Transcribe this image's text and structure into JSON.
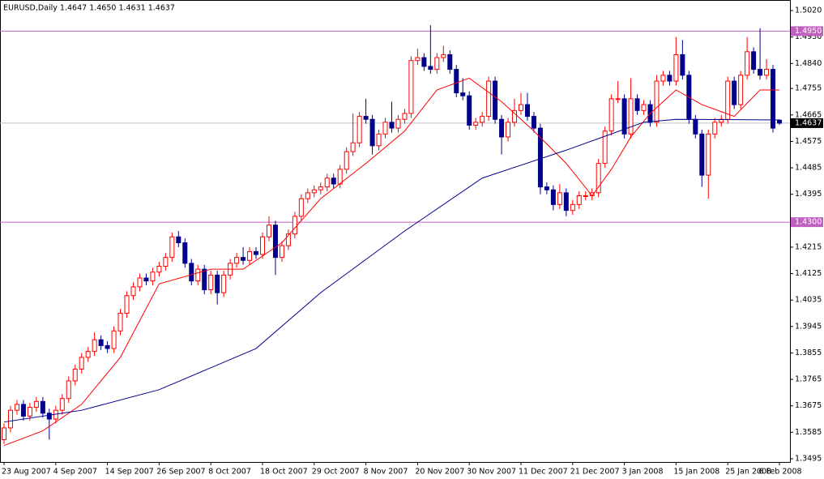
{
  "chart_data": {
    "type": "candlestick",
    "title": "EURUSD,Daily  1.4647 1.4650 1.4631 1.4637",
    "categories": [
      "23 Aug 2007",
      null,
      null,
      null,
      null,
      null,
      null,
      null,
      "4 Sep 2007",
      null,
      null,
      null,
      null,
      null,
      null,
      null,
      "14 Sep 2007",
      null,
      null,
      null,
      null,
      null,
      null,
      null,
      "26 Sep 2007",
      null,
      null,
      null,
      null,
      null,
      null,
      null,
      "8 Oct 2007",
      null,
      null,
      null,
      null,
      null,
      null,
      null,
      "18 Oct 2007",
      null,
      null,
      null,
      null,
      null,
      null,
      null,
      "29 Oct 2007",
      null,
      null,
      null,
      null,
      null,
      null,
      null,
      "8 Nov 2007",
      null,
      null,
      null,
      null,
      null,
      null,
      null,
      "20 Nov 2007",
      null,
      null,
      null,
      null,
      null,
      null,
      null,
      "30 Nov 2007",
      null,
      null,
      null,
      null,
      null,
      null,
      null,
      "11 Dec 2007",
      null,
      null,
      null,
      null,
      null,
      null,
      null,
      "21 Dec 2007",
      null,
      null,
      null,
      null,
      null,
      null,
      null,
      "3 Jan 2008",
      null,
      null,
      null,
      null,
      null,
      null,
      null,
      "15 Jan 2008",
      null,
      null,
      null,
      null,
      null,
      null,
      null,
      "25 Jan 2008",
      null,
      null,
      null,
      null,
      null,
      null,
      null,
      "6 Feb 2008"
    ],
    "candles": [
      [
        1.356,
        1.3615,
        1.3545,
        1.36
      ],
      [
        1.36,
        1.3675,
        1.3585,
        1.366
      ],
      [
        1.366,
        1.3695,
        1.3645,
        1.368
      ],
      [
        1.368,
        1.3695,
        1.3625,
        1.364
      ],
      [
        1.364,
        1.3685,
        1.3625,
        1.367
      ],
      [
        1.367,
        1.3705,
        1.3655,
        1.369
      ],
      [
        1.369,
        1.3705,
        1.3635,
        1.365
      ],
      [
        1.365,
        1.3665,
        1.356,
        1.363
      ],
      [
        1.363,
        1.3675,
        1.3615,
        1.366
      ],
      [
        1.366,
        1.3715,
        1.3645,
        1.37
      ],
      [
        1.37,
        1.3775,
        1.3685,
        1.376
      ],
      [
        1.376,
        1.3815,
        1.3745,
        1.38
      ],
      [
        1.38,
        1.3855,
        1.3785,
        1.384
      ],
      [
        1.384,
        1.3875,
        1.3825,
        1.386
      ],
      [
        1.386,
        1.3925,
        1.3845,
        1.39
      ],
      [
        1.39,
        1.3915,
        1.3865,
        1.388
      ],
      [
        1.388,
        1.3895,
        1.3855,
        1.387
      ],
      [
        1.387,
        1.3945,
        1.3855,
        1.393
      ],
      [
        1.393,
        1.4005,
        1.3915,
        1.399
      ],
      [
        1.399,
        1.4065,
        1.3975,
        1.405
      ],
      [
        1.405,
        1.4095,
        1.4035,
        1.408
      ],
      [
        1.408,
        1.4125,
        1.4065,
        1.411
      ],
      [
        1.411,
        1.4125,
        1.4085,
        1.41
      ],
      [
        1.41,
        1.4145,
        1.4085,
        1.413
      ],
      [
        1.413,
        1.4165,
        1.4115,
        1.415
      ],
      [
        1.415,
        1.4195,
        1.4135,
        1.418
      ],
      [
        1.418,
        1.4265,
        1.4165,
        1.425
      ],
      [
        1.425,
        1.427,
        1.4215,
        1.423
      ],
      [
        1.423,
        1.4245,
        1.4145,
        1.416
      ],
      [
        1.416,
        1.4175,
        1.4085,
        1.41
      ],
      [
        1.41,
        1.4155,
        1.4085,
        1.414
      ],
      [
        1.414,
        1.4155,
        1.4055,
        1.407
      ],
      [
        1.407,
        1.4135,
        1.4055,
        1.412
      ],
      [
        1.412,
        1.4135,
        1.402,
        1.406
      ],
      [
        1.406,
        1.4135,
        1.4045,
        1.412
      ],
      [
        1.412,
        1.4175,
        1.4105,
        1.416
      ],
      [
        1.416,
        1.4195,
        1.4145,
        1.418
      ],
      [
        1.418,
        1.4215,
        1.4155,
        1.417
      ],
      [
        1.417,
        1.4215,
        1.4155,
        1.42
      ],
      [
        1.42,
        1.4215,
        1.4175,
        1.419
      ],
      [
        1.419,
        1.4265,
        1.4175,
        1.425
      ],
      [
        1.425,
        1.432,
        1.4235,
        1.429
      ],
      [
        1.429,
        1.4305,
        1.412,
        1.418
      ],
      [
        1.418,
        1.4235,
        1.4165,
        1.422
      ],
      [
        1.422,
        1.4275,
        1.4205,
        1.426
      ],
      [
        1.426,
        1.4335,
        1.4245,
        1.432
      ],
      [
        1.432,
        1.4395,
        1.4305,
        1.438
      ],
      [
        1.438,
        1.4415,
        1.4365,
        1.44
      ],
      [
        1.44,
        1.4425,
        1.4385,
        1.441
      ],
      [
        1.441,
        1.4435,
        1.4395,
        1.442
      ],
      [
        1.442,
        1.4465,
        1.4405,
        1.445
      ],
      [
        1.445,
        1.4465,
        1.4415,
        1.443
      ],
      [
        1.443,
        1.4495,
        1.4415,
        1.448
      ],
      [
        1.448,
        1.4555,
        1.4465,
        1.454
      ],
      [
        1.454,
        1.467,
        1.4525,
        1.457
      ],
      [
        1.457,
        1.4675,
        1.4555,
        1.466
      ],
      [
        1.466,
        1.472,
        1.4635,
        1.465
      ],
      [
        1.465,
        1.4665,
        1.453,
        1.456
      ],
      [
        1.456,
        1.4615,
        1.4545,
        1.46
      ],
      [
        1.46,
        1.4655,
        1.4585,
        1.464
      ],
      [
        1.464,
        1.471,
        1.4605,
        1.462
      ],
      [
        1.462,
        1.4665,
        1.4605,
        1.465
      ],
      [
        1.465,
        1.4685,
        1.4635,
        1.467
      ],
      [
        1.467,
        1.4865,
        1.4655,
        1.485
      ],
      [
        1.485,
        1.489,
        1.4835,
        1.486
      ],
      [
        1.486,
        1.4875,
        1.4815,
        1.483
      ],
      [
        1.483,
        1.497,
        1.4805,
        1.482
      ],
      [
        1.482,
        1.4875,
        1.4805,
        1.486
      ],
      [
        1.486,
        1.49,
        1.4845,
        1.487
      ],
      [
        1.487,
        1.4885,
        1.4805,
        1.482
      ],
      [
        1.482,
        1.4835,
        1.4725,
        1.474
      ],
      [
        1.474,
        1.479,
        1.4715,
        1.473
      ],
      [
        1.473,
        1.4745,
        1.4615,
        1.463
      ],
      [
        1.463,
        1.4655,
        1.4615,
        1.464
      ],
      [
        1.464,
        1.4675,
        1.4625,
        1.466
      ],
      [
        1.466,
        1.4795,
        1.4645,
        1.478
      ],
      [
        1.478,
        1.4795,
        1.4635,
        1.465
      ],
      [
        1.465,
        1.4665,
        1.453,
        1.459
      ],
      [
        1.459,
        1.4655,
        1.4575,
        1.464
      ],
      [
        1.464,
        1.472,
        1.4625,
        1.468
      ],
      [
        1.468,
        1.474,
        1.4665,
        1.47
      ],
      [
        1.47,
        1.474,
        1.4645,
        1.466
      ],
      [
        1.466,
        1.4675,
        1.4605,
        1.462
      ],
      [
        1.462,
        1.4635,
        1.4395,
        1.442
      ],
      [
        1.442,
        1.4435,
        1.4395,
        1.441
      ],
      [
        1.441,
        1.4425,
        1.434,
        1.436
      ],
      [
        1.436,
        1.443,
        1.4345,
        1.44
      ],
      [
        1.44,
        1.4415,
        1.432,
        1.434
      ],
      [
        1.434,
        1.4375,
        1.4325,
        1.436
      ],
      [
        1.436,
        1.4405,
        1.4345,
        1.439
      ],
      [
        1.439,
        1.4405,
        1.4375,
        1.439
      ],
      [
        1.439,
        1.4415,
        1.4375,
        1.44
      ],
      [
        1.44,
        1.4515,
        1.4385,
        1.45
      ],
      [
        1.45,
        1.4625,
        1.4485,
        1.461
      ],
      [
        1.461,
        1.4735,
        1.4595,
        1.472
      ],
      [
        1.472,
        1.478,
        1.4705,
        1.472
      ],
      [
        1.472,
        1.4735,
        1.4585,
        1.46
      ],
      [
        1.46,
        1.479,
        1.4585,
        1.472
      ],
      [
        1.472,
        1.4735,
        1.4665,
        1.468
      ],
      [
        1.468,
        1.4715,
        1.4665,
        1.47
      ],
      [
        1.47,
        1.4715,
        1.4625,
        1.464
      ],
      [
        1.464,
        1.48,
        1.4625,
        1.478
      ],
      [
        1.478,
        1.4815,
        1.4765,
        1.48
      ],
      [
        1.48,
        1.4815,
        1.4765,
        1.478
      ],
      [
        1.478,
        1.493,
        1.4765,
        1.487
      ],
      [
        1.487,
        1.492,
        1.4785,
        1.48
      ],
      [
        1.48,
        1.4815,
        1.4635,
        1.465
      ],
      [
        1.465,
        1.4665,
        1.4585,
        1.46
      ],
      [
        1.46,
        1.4615,
        1.442,
        1.446
      ],
      [
        1.446,
        1.4615,
        1.438,
        1.46
      ],
      [
        1.46,
        1.4655,
        1.4585,
        1.464
      ],
      [
        1.464,
        1.4665,
        1.4625,
        1.465
      ],
      [
        1.465,
        1.4795,
        1.4635,
        1.478
      ],
      [
        1.478,
        1.4795,
        1.4685,
        1.47
      ],
      [
        1.47,
        1.4815,
        1.4685,
        1.48
      ],
      [
        1.48,
        1.493,
        1.4785,
        1.488
      ],
      [
        1.488,
        1.4895,
        1.4805,
        1.482
      ],
      [
        1.482,
        1.496,
        1.4785,
        1.48
      ],
      [
        1.48,
        1.4855,
        1.4785,
        1.482
      ],
      [
        1.482,
        1.4835,
        1.4605,
        1.462
      ],
      [
        1.4647,
        1.465,
        1.4631,
        1.4637
      ]
    ],
    "up_color": "#ff0000",
    "down_color": "#00008b",
    "averages": [
      {
        "color": "#ff0000",
        "x": [
          0,
          6,
          12,
          18,
          24,
          32,
          37,
          43,
          49,
          56,
          62,
          67,
          72,
          77,
          82,
          87,
          91,
          94,
          97,
          100,
          104,
          108,
          113,
          117,
          120
        ],
        "values": [
          1.354,
          1.359,
          1.368,
          1.384,
          1.409,
          1.414,
          1.414,
          1.423,
          1.438,
          1.45,
          1.461,
          1.475,
          1.479,
          1.471,
          1.461,
          1.45,
          1.439,
          1.448,
          1.459,
          1.467,
          1.475,
          1.47,
          1.466,
          1.475,
          1.475
        ]
      },
      {
        "color": "#00008b",
        "x": [
          0,
          12,
          24,
          39,
          49,
          62,
          74,
          87,
          99,
          104,
          120
        ],
        "values": [
          1.362,
          1.366,
          1.373,
          1.387,
          1.406,
          1.427,
          1.445,
          1.4545,
          1.464,
          1.465,
          1.4648
        ]
      }
    ],
    "levels": [
      {
        "value": 1.495,
        "label": "1.4950"
      },
      {
        "value": 1.43,
        "label": "1.4300"
      }
    ],
    "level_color": "#c060c0",
    "price_line": {
      "value": 1.4637,
      "label": "1.4637"
    },
    "ylim": [
      1.3484,
      1.5056
    ],
    "yticks": [
      {
        "value": 1.502,
        "label": "1.5020"
      },
      {
        "value": 1.493,
        "label": "1.4930"
      },
      {
        "value": 1.484,
        "label": "1.4840"
      },
      {
        "value": 1.4755,
        "label": "1.4755"
      },
      {
        "value": 1.4665,
        "label": "1.4665"
      },
      {
        "value": 1.4575,
        "label": "1.4575"
      },
      {
        "value": 1.4485,
        "label": "1.4485"
      },
      {
        "value": 1.4395,
        "label": "1.4395"
      },
      {
        "value": 1.43,
        "label": "1.4300"
      },
      {
        "value": 1.4215,
        "label": "1.4215"
      },
      {
        "value": 1.4125,
        "label": "1.4125"
      },
      {
        "value": 1.4035,
        "label": "1.4035"
      },
      {
        "value": 1.3945,
        "label": "1.3945"
      },
      {
        "value": 1.3855,
        "label": "1.3855"
      },
      {
        "value": 1.3765,
        "label": "1.3765"
      },
      {
        "value": 1.3675,
        "label": "1.3675"
      },
      {
        "value": 1.3585,
        "label": "1.3585"
      },
      {
        "value": 1.3495,
        "label": "1.3495"
      }
    ]
  }
}
